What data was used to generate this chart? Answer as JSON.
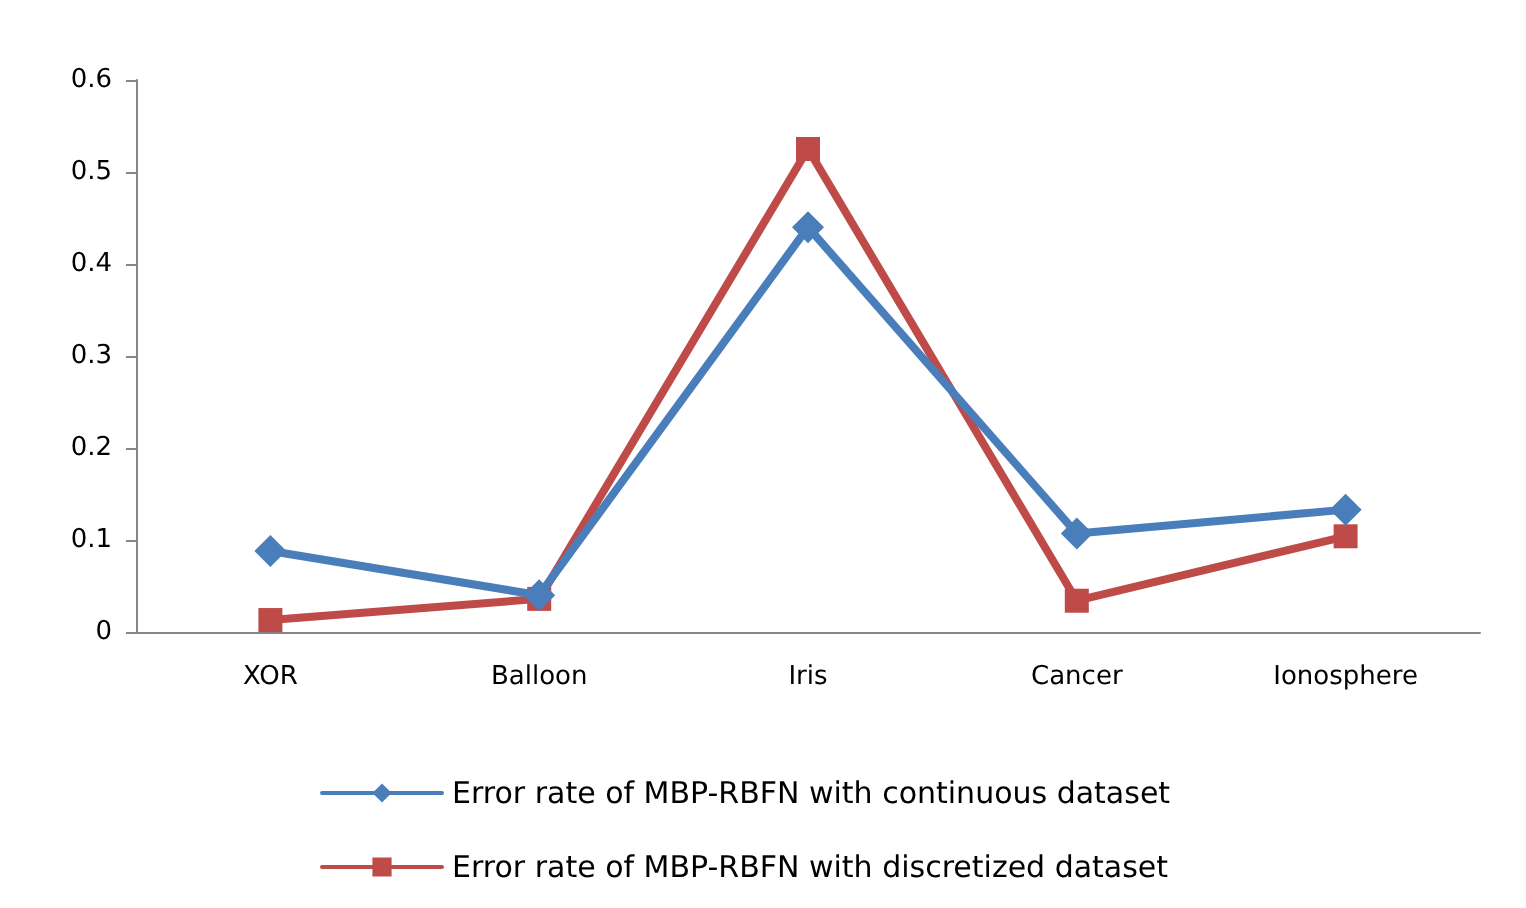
{
  "chart_data": {
    "type": "line",
    "categories": [
      "XOR",
      "Balloon",
      "Iris",
      "Cancer",
      "Ionosphere"
    ],
    "series": [
      {
        "name": "Error rate of MBP-RBFN with continuous dataset",
        "color": "#4a7ebb",
        "marker": "diamond",
        "values": [
          0.088,
          0.04,
          0.44,
          0.107,
          0.133
        ]
      },
      {
        "name": "Error rate of MBP-RBFN with discretized dataset",
        "color": "#be4b48",
        "marker": "square",
        "values": [
          0.013,
          0.036,
          0.525,
          0.034,
          0.104
        ]
      }
    ],
    "ylim": [
      0,
      0.6
    ],
    "yticks": [
      0,
      0.1,
      0.2,
      0.3,
      0.4,
      0.5,
      0.6
    ],
    "grid": false,
    "legend": "bottom"
  }
}
